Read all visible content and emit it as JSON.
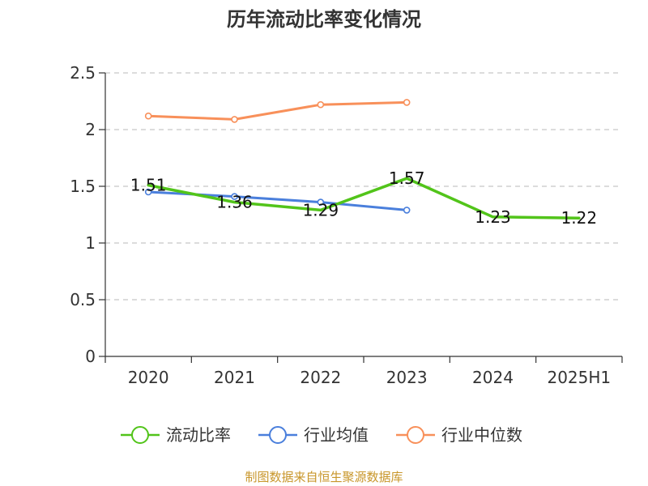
{
  "chart_data": {
    "type": "line",
    "title": "历年流动比率变化情况",
    "categories": [
      "2020",
      "2021",
      "2022",
      "2023",
      "2024",
      "2025H1"
    ],
    "ylim": [
      0,
      2.5
    ],
    "yticks": [
      "0",
      "0.5",
      "1",
      "1.5",
      "2",
      "2.5"
    ],
    "grid": true,
    "legend_position": "bottom",
    "series": [
      {
        "name": "流动比率",
        "color": "#52c41a",
        "values": [
          1.51,
          1.36,
          1.29,
          1.57,
          1.23,
          1.22
        ],
        "labels": [
          "1.51",
          "1.36",
          "1.29",
          "1.57",
          "1.23",
          "1.22"
        ]
      },
      {
        "name": "行业均值",
        "color": "#4a7fdc",
        "values": [
          1.45,
          1.41,
          1.36,
          1.29,
          null,
          null
        ]
      },
      {
        "name": "行业中位数",
        "color": "#f8905a",
        "values": [
          2.12,
          2.09,
          2.22,
          2.24,
          null,
          null
        ]
      }
    ]
  },
  "source": "制图数据来自恒生聚源数据库"
}
